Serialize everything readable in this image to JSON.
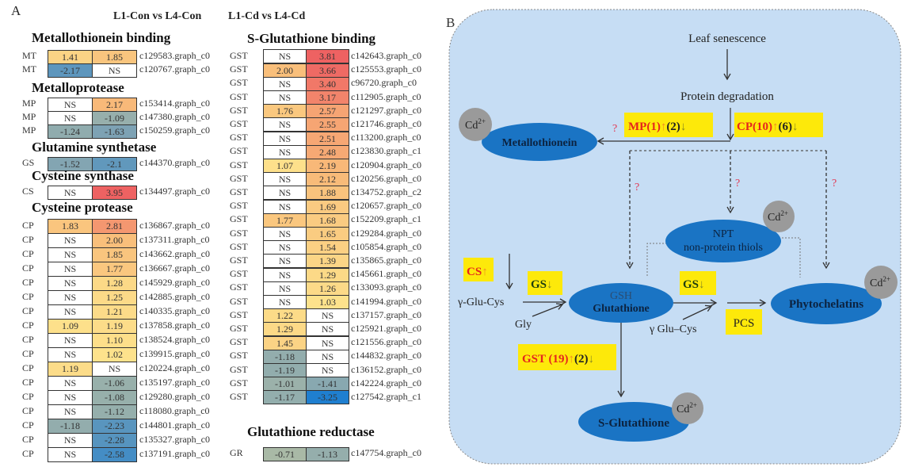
{
  "panel_a": {
    "letter": "A",
    "col_headers": [
      "L1-Con vs L4-Con",
      "L1-Cd vs L4-Cd"
    ],
    "left_sections": [
      {
        "title": "Metallothionein binding",
        "rows": [
          {
            "label": "MT",
            "con": "1.41",
            "cd": "1.85",
            "id": "c129583.graph_c0"
          },
          {
            "label": "MT",
            "con": "-2.17",
            "cd": "NS",
            "id": "c120767.graph_c0"
          }
        ]
      },
      {
        "title": "Metalloprotease",
        "rows": [
          {
            "label": "MP",
            "con": "NS",
            "cd": "2.17",
            "id": "c153414.graph_c0"
          },
          {
            "label": "MP",
            "con": "NS",
            "cd": "-1.09",
            "id": "c147380.graph_c0"
          },
          {
            "label": "MP",
            "con": "-1.24",
            "cd": "-1.63",
            "id": "c150259.graph_c0"
          }
        ]
      },
      {
        "title": "Glutamine synthetase",
        "rows": [
          {
            "label": "GS",
            "con": "-1.52",
            "cd": "-2.1",
            "id": "c144370.graph_c0"
          }
        ]
      },
      {
        "title": "Cysteine synthase",
        "rows": [
          {
            "label": "CS",
            "con": "NS",
            "cd": "3.95",
            "id": "c134497.graph_c0"
          }
        ]
      },
      {
        "title": "Cysteine protease",
        "rows": [
          {
            "label": "CP",
            "con": "1.83",
            "cd": "2.81",
            "id": "c136867.graph_c0"
          },
          {
            "label": "CP",
            "con": "NS",
            "cd": "2.00",
            "id": "c137311.graph_c0"
          },
          {
            "label": "CP",
            "con": "NS",
            "cd": "1.85",
            "id": "c143662.graph_c0"
          },
          {
            "label": "CP",
            "con": "NS",
            "cd": "1.77",
            "id": "c136667.graph_c0"
          },
          {
            "label": "CP",
            "con": "NS",
            "cd": "1.28",
            "id": "c145929.graph_c0"
          },
          {
            "label": "CP",
            "con": "NS",
            "cd": "1.25",
            "id": "c142885.graph_c0"
          },
          {
            "label": "CP",
            "con": "NS",
            "cd": "1.21",
            "id": "c140335.graph_c0"
          },
          {
            "label": "CP",
            "con": "1.09",
            "cd": "1.19",
            "id": "c137858.graph_c0"
          },
          {
            "label": "CP",
            "con": "NS",
            "cd": "1.10",
            "id": "c138524.graph_c0"
          },
          {
            "label": "CP",
            "con": "NS",
            "cd": "1.02",
            "id": "c139915.graph_c0"
          },
          {
            "label": "CP",
            "con": "1.19",
            "cd": "NS",
            "id": "c120224.graph_c0"
          },
          {
            "label": "CP",
            "con": "NS",
            "cd": "-1.06",
            "id": "c135197.graph_c0"
          },
          {
            "label": "CP",
            "con": "NS",
            "cd": "-1.08",
            "id": "c129280.graph_c0"
          },
          {
            "label": "CP",
            "con": "NS",
            "cd": "-1.12",
            "id": "c118080.graph_c0"
          },
          {
            "label": "CP",
            "con": "-1.18",
            "cd": "-2.23",
            "id": "c144801.graph_c0"
          },
          {
            "label": "CP",
            "con": "NS",
            "cd": "-2.28",
            "id": "c135327.graph_c0"
          },
          {
            "label": "CP",
            "con": "NS",
            "cd": "-2.58",
            "id": "c137191.graph_c0"
          }
        ]
      }
    ],
    "right_sections": [
      {
        "title": "S-Glutathione binding",
        "rows": [
          {
            "label": "GST",
            "con": "NS",
            "cd": "3.81",
            "id": "c142643.graph_c0"
          },
          {
            "label": "GST",
            "con": "2.00",
            "cd": "3.66",
            "id": "c125553.graph_c0"
          },
          {
            "label": "GST",
            "con": "NS",
            "cd": "3.40",
            "id": "c96720.graph_c0"
          },
          {
            "label": "GST",
            "con": "NS",
            "cd": "3.17",
            "id": "c112905.graph_c0"
          },
          {
            "label": "GST",
            "con": "1.76",
            "cd": "2.57",
            "id": "c121297.graph_c0"
          },
          {
            "label": "GST",
            "con": "NS",
            "cd": "2.55",
            "id": "c121746.graph_c0"
          },
          {
            "label": "GST",
            "con": "NS",
            "cd": "2.51",
            "id": "c113200.graph_c0"
          },
          {
            "label": "GST",
            "con": "NS",
            "cd": "2.48",
            "id": "c123830.graph_c1"
          },
          {
            "label": "GST",
            "con": "1.07",
            "cd": "2.19",
            "id": "c120904.graph_c0"
          },
          {
            "label": "GST",
            "con": "NS",
            "cd": "2.12",
            "id": "c120256.graph_c0"
          },
          {
            "label": "GST",
            "con": "NS",
            "cd": "1.88",
            "id": "c134752.graph_c2"
          },
          {
            "label": "GST",
            "con": "NS",
            "cd": "1.69",
            "id": "c120657.graph_c0"
          },
          {
            "label": "GST",
            "con": "1.77",
            "cd": "1.68",
            "id": "c152209.graph_c1"
          },
          {
            "label": "GST",
            "con": "NS",
            "cd": "1.65",
            "id": "c129284.graph_c0"
          },
          {
            "label": "GST",
            "con": "NS",
            "cd": "1.54",
            "id": "c105854.graph_c0"
          },
          {
            "label": "GST",
            "con": "NS",
            "cd": "1.39",
            "id": "c135865.graph_c0"
          },
          {
            "label": "GST",
            "con": "NS",
            "cd": "1.29",
            "id": "c145661.graph_c0"
          },
          {
            "label": "GST",
            "con": "NS",
            "cd": "1.26",
            "id": "c133093.graph_c0"
          },
          {
            "label": "GST",
            "con": "NS",
            "cd": "1.03",
            "id": "c141994.graph_c0"
          },
          {
            "label": "GST",
            "con": "1.22",
            "cd": "NS",
            "id": "c137157.graph_c0"
          },
          {
            "label": "GST",
            "con": "1.29",
            "cd": "NS",
            "id": "c125921.graph_c0"
          },
          {
            "label": "GST",
            "con": "1.45",
            "cd": "NS",
            "id": "c121556.graph_c0"
          },
          {
            "label": "GST",
            "con": "-1.18",
            "cd": "NS",
            "id": "c144832.graph_c0"
          },
          {
            "label": "GST",
            "con": "-1.19",
            "cd": "NS",
            "id": "c136152.graph_c0"
          },
          {
            "label": "GST",
            "con": "-1.01",
            "cd": "-1.41",
            "id": "c142224.graph_c0"
          },
          {
            "label": "GST",
            "con": "-1.17",
            "cd": "-3.25",
            "id": "c127542.graph_c1"
          }
        ]
      },
      {
        "title": "Glutathione reductase",
        "rows": [
          {
            "label": "GR",
            "con": "-0.71",
            "cd": "-1.13",
            "id": "c147754.graph_c0"
          }
        ]
      }
    ],
    "colors": {
      "ns": "#ffffff",
      "up_low": "#fde38c",
      "up_mid": "#f8b878",
      "up_high": "#ee6262",
      "down_low": "#a9b9a6",
      "down_mid": "#7fa3b3",
      "down_high": "#1f7fd0"
    }
  },
  "panel_b": {
    "letter": "B",
    "leaf_senescence": "Leaf senescence",
    "protein_degradation": "Protein degradation",
    "mp_box": {
      "name": "MP(1)",
      "up": "↑",
      "down_count": "(2)",
      "down": "↓"
    },
    "cp_box": {
      "name": "CP(10)",
      "up": "↑",
      "down_count": "(6)",
      "down": "↓"
    },
    "question": "?",
    "metallothionein": "Metallothionein",
    "npt": {
      "line1": "NPT",
      "line2": "non-protein thiols"
    },
    "cd": {
      "base": "Cd",
      "sup": "2+"
    },
    "cs_box": {
      "name": "CS",
      "up": "↑"
    },
    "gs_box": {
      "name": "GS",
      "down": "↓"
    },
    "glu_cys_1": "γ-Glu-Cys",
    "gly": "Gly",
    "gsh": {
      "line1": "GSH",
      "line2": "Glutathione"
    },
    "glu_cys_2": "γ Glu–Cys",
    "pcs": "PCS",
    "phytochelatins": "Phytochelatins",
    "gst_box": {
      "name": "GST (19)",
      "up": "↑",
      "down_count": "(2)",
      "down": "↓"
    },
    "s_glutathione": "S-Glutathione",
    "colors": {
      "background": "#c6ddf4",
      "ellipse": "#1a74c4",
      "box": "#fde90a",
      "cd_circle": "#9a9a9a",
      "up_text": "#e5251d",
      "question": "#e23a55"
    }
  }
}
